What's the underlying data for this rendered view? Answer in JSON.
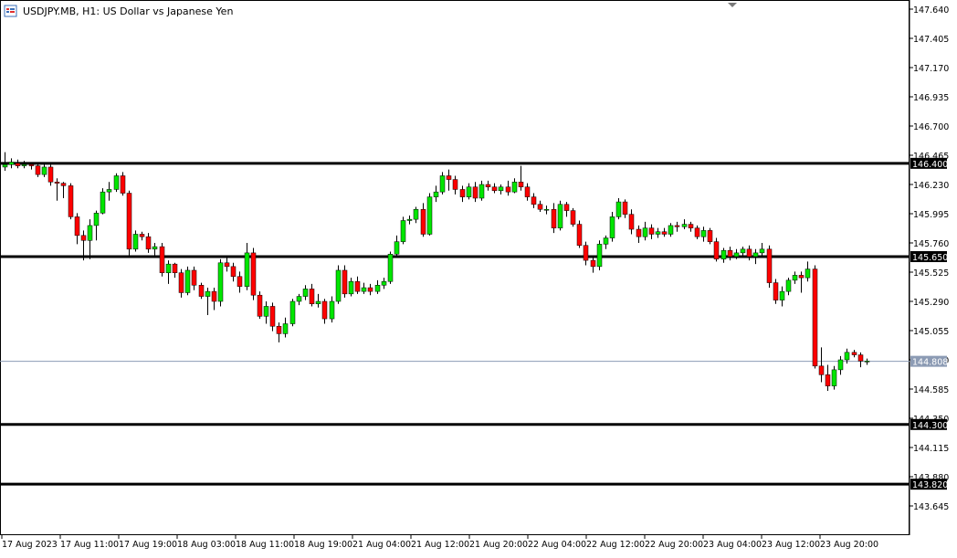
{
  "title": "USDJPY.MB, H1:  US Dollar vs Japanese Yen",
  "icon_name": "chart-window-icon",
  "colors": {
    "bull": "#00e600",
    "bear": "#ff0000",
    "wick": "#000000",
    "level_line": "#000000",
    "bid_line": "#8c9bb4",
    "bid_label_bg": "#8c9bb4",
    "level_label_bg": "#000000"
  },
  "chart_data": {
    "type": "candlestick",
    "symbol": "USDJPY.MB",
    "timeframe": "H1",
    "y_axis_ticks": [
      147.64,
      147.405,
      147.17,
      146.935,
      146.7,
      146.465,
      146.23,
      145.995,
      145.76,
      145.525,
      145.29,
      145.055,
      144.82,
      144.585,
      144.35,
      144.115,
      143.88,
      143.645
    ],
    "y_tick_labels": [
      "147.640",
      "147.405",
      "147.170",
      "146.935",
      "146.700",
      "146.465",
      "146.230",
      "145.995",
      "145.760",
      "145.525",
      "145.290",
      "145.055",
      "144.820",
      "144.585",
      "144.350",
      "144.115",
      "143.880",
      "143.645"
    ],
    "x_labels": [
      "17 Aug 2023",
      "17 Aug 11:00",
      "17 Aug 19:00",
      "18 Aug 03:00",
      "18 Aug 11:00",
      "18 Aug 19:00",
      "21 Aug 04:00",
      "21 Aug 12:00",
      "21 Aug 20:00",
      "22 Aug 04:00",
      "22 Aug 12:00",
      "22 Aug 20:00",
      "23 Aug 04:00",
      "23 Aug 12:00",
      "23 Aug 20:00"
    ],
    "horizontal_levels": [
      {
        "value": 146.4,
        "label": "146.400"
      },
      {
        "value": 145.65,
        "label": "145.650"
      },
      {
        "value": 144.3,
        "label": "144.300"
      },
      {
        "value": 143.82,
        "label": "143.820"
      }
    ],
    "bid": {
      "value": 144.808,
      "label": "144.808"
    },
    "candles": [
      [
        146.37,
        146.39,
        146.49,
        146.34
      ],
      [
        146.39,
        146.41,
        146.44,
        146.36
      ],
      [
        146.4,
        146.38,
        146.43,
        146.36
      ],
      [
        146.38,
        146.39,
        146.42,
        146.36
      ],
      [
        146.39,
        146.38,
        146.41,
        146.35
      ],
      [
        146.38,
        146.31,
        146.4,
        146.29
      ],
      [
        146.31,
        146.37,
        146.4,
        146.29
      ],
      [
        146.37,
        146.25,
        146.39,
        146.22
      ],
      [
        146.25,
        146.24,
        146.28,
        146.1
      ],
      [
        146.24,
        146.22,
        146.25,
        146.12
      ],
      [
        146.22,
        145.97,
        146.24,
        145.95
      ],
      [
        145.97,
        145.82,
        146.0,
        145.75
      ],
      [
        145.82,
        145.78,
        145.86,
        145.62
      ],
      [
        145.78,
        145.9,
        145.95,
        145.63
      ],
      [
        145.9,
        146.0,
        146.02,
        145.78
      ],
      [
        146.0,
        146.17,
        146.2,
        145.99
      ],
      [
        146.17,
        146.19,
        146.25,
        146.1
      ],
      [
        146.19,
        146.3,
        146.32,
        146.17
      ],
      [
        146.3,
        146.16,
        146.33,
        146.14
      ],
      [
        146.16,
        145.71,
        146.18,
        145.66
      ],
      [
        145.71,
        145.83,
        145.86,
        145.69
      ],
      [
        145.83,
        145.81,
        145.85,
        145.78
      ],
      [
        145.81,
        145.71,
        145.84,
        145.68
      ],
      [
        145.71,
        145.73,
        145.76,
        145.65
      ],
      [
        145.73,
        145.52,
        145.76,
        145.49
      ],
      [
        145.52,
        145.59,
        145.62,
        145.43
      ],
      [
        145.59,
        145.52,
        145.6,
        145.48
      ],
      [
        145.52,
        145.36,
        145.55,
        145.32
      ],
      [
        145.36,
        145.54,
        145.57,
        145.34
      ],
      [
        145.54,
        145.42,
        145.57,
        145.38
      ],
      [
        145.42,
        145.33,
        145.44,
        145.31
      ],
      [
        145.33,
        145.37,
        145.4,
        145.18
      ],
      [
        145.37,
        145.29,
        145.4,
        145.22
      ],
      [
        145.29,
        145.6,
        145.63,
        145.25
      ],
      [
        145.6,
        145.57,
        145.65,
        145.53
      ],
      [
        145.57,
        145.49,
        145.6,
        145.45
      ],
      [
        145.49,
        145.41,
        145.53,
        145.36
      ],
      [
        145.41,
        145.68,
        145.76,
        145.38
      ],
      [
        145.68,
        145.34,
        145.72,
        145.3
      ],
      [
        145.34,
        145.17,
        145.37,
        145.15
      ],
      [
        145.17,
        145.25,
        145.29,
        145.11
      ],
      [
        145.25,
        145.09,
        145.28,
        145.05
      ],
      [
        145.09,
        145.03,
        145.12,
        144.96
      ],
      [
        145.03,
        145.11,
        145.16,
        145.0
      ],
      [
        145.11,
        145.29,
        145.31,
        145.09
      ],
      [
        145.29,
        145.33,
        145.35,
        145.26
      ],
      [
        145.33,
        145.39,
        145.42,
        145.3
      ],
      [
        145.39,
        145.27,
        145.43,
        145.25
      ],
      [
        145.27,
        145.29,
        145.35,
        145.24
      ],
      [
        145.29,
        145.15,
        145.31,
        145.11
      ],
      [
        145.15,
        145.29,
        145.33,
        145.12
      ],
      [
        145.29,
        145.54,
        145.58,
        145.27
      ],
      [
        145.54,
        145.35,
        145.58,
        145.32
      ],
      [
        145.35,
        145.45,
        145.48,
        145.33
      ],
      [
        145.45,
        145.37,
        145.49,
        145.35
      ],
      [
        145.37,
        145.4,
        145.44,
        145.35
      ],
      [
        145.4,
        145.37,
        145.43,
        145.34
      ],
      [
        145.37,
        145.42,
        145.46,
        145.35
      ],
      [
        145.42,
        145.45,
        145.48,
        145.39
      ],
      [
        145.45,
        145.67,
        145.69,
        145.43
      ],
      [
        145.67,
        145.77,
        145.82,
        145.64
      ],
      [
        145.77,
        145.94,
        145.97,
        145.75
      ],
      [
        145.94,
        145.95,
        145.98,
        145.91
      ],
      [
        145.95,
        146.03,
        146.05,
        145.92
      ],
      [
        146.03,
        145.83,
        146.08,
        145.81
      ],
      [
        145.83,
        146.13,
        146.16,
        145.82
      ],
      [
        146.13,
        146.17,
        146.22,
        146.09
      ],
      [
        146.17,
        146.3,
        146.33,
        146.15
      ],
      [
        146.3,
        146.27,
        146.35,
        146.18
      ],
      [
        146.27,
        146.19,
        146.3,
        146.15
      ],
      [
        146.19,
        146.13,
        146.22,
        146.09
      ],
      [
        146.13,
        146.21,
        146.24,
        146.11
      ],
      [
        146.21,
        146.12,
        146.25,
        146.09
      ],
      [
        146.12,
        146.23,
        146.26,
        146.1
      ],
      [
        146.23,
        146.21,
        146.26,
        146.18
      ],
      [
        146.21,
        146.18,
        146.24,
        146.16
      ],
      [
        146.18,
        146.21,
        146.23,
        146.15
      ],
      [
        146.21,
        146.17,
        146.26,
        146.14
      ],
      [
        146.17,
        146.25,
        146.28,
        146.16
      ],
      [
        146.25,
        146.21,
        146.38,
        146.18
      ],
      [
        146.21,
        146.13,
        146.24,
        146.1
      ],
      [
        146.13,
        146.07,
        146.16,
        146.04
      ],
      [
        146.07,
        146.03,
        146.1,
        146.01
      ],
      [
        146.03,
        146.03,
        146.06,
        145.99
      ],
      [
        146.03,
        145.88,
        146.08,
        145.84
      ],
      [
        145.88,
        146.07,
        146.1,
        145.86
      ],
      [
        146.07,
        146.02,
        146.09,
        145.97
      ],
      [
        146.02,
        145.91,
        146.04,
        145.89
      ],
      [
        145.91,
        145.74,
        145.94,
        145.72
      ],
      [
        145.74,
        145.62,
        145.77,
        145.58
      ],
      [
        145.62,
        145.57,
        145.65,
        145.52
      ],
      [
        145.57,
        145.75,
        145.78,
        145.54
      ],
      [
        145.75,
        145.8,
        145.82,
        145.71
      ],
      [
        145.8,
        145.97,
        146.01,
        145.77
      ],
      [
        145.97,
        146.09,
        146.12,
        145.95
      ],
      [
        146.09,
        145.99,
        146.11,
        145.96
      ],
      [
        145.99,
        145.87,
        146.03,
        145.83
      ],
      [
        145.87,
        145.81,
        145.9,
        145.76
      ],
      [
        145.81,
        145.88,
        145.93,
        145.78
      ],
      [
        145.88,
        145.83,
        145.91,
        145.79
      ],
      [
        145.83,
        145.85,
        145.88,
        145.8
      ],
      [
        145.85,
        145.83,
        145.88,
        145.81
      ],
      [
        145.83,
        145.9,
        145.92,
        145.81
      ],
      [
        145.9,
        145.89,
        145.93,
        145.85
      ],
      [
        145.89,
        145.91,
        145.95,
        145.87
      ],
      [
        145.91,
        145.88,
        145.93,
        145.85
      ],
      [
        145.88,
        145.81,
        145.9,
        145.79
      ],
      [
        145.81,
        145.86,
        145.89,
        145.77
      ],
      [
        145.86,
        145.77,
        145.88,
        145.75
      ],
      [
        145.77,
        145.63,
        145.8,
        145.61
      ],
      [
        145.63,
        145.7,
        145.72,
        145.6
      ],
      [
        145.7,
        145.65,
        145.73,
        145.62
      ],
      [
        145.65,
        145.68,
        145.71,
        145.63
      ],
      [
        145.68,
        145.71,
        145.73,
        145.65
      ],
      [
        145.71,
        145.65,
        145.74,
        145.62
      ],
      [
        145.65,
        145.68,
        145.71,
        145.59
      ],
      [
        145.68,
        145.71,
        145.76,
        145.64
      ],
      [
        145.71,
        145.44,
        145.74,
        145.4
      ],
      [
        145.44,
        145.3,
        145.47,
        145.27
      ],
      [
        145.3,
        145.37,
        145.41,
        145.25
      ],
      [
        145.37,
        145.46,
        145.48,
        145.34
      ],
      [
        145.46,
        145.5,
        145.53,
        145.43
      ],
      [
        145.5,
        145.48,
        145.53,
        145.36
      ],
      [
        145.48,
        145.55,
        145.61,
        145.45
      ],
      [
        145.55,
        144.77,
        145.58,
        144.75
      ],
      [
        144.77,
        144.7,
        144.92,
        144.64
      ],
      [
        144.7,
        144.61,
        144.78,
        144.57
      ],
      [
        144.61,
        144.74,
        144.77,
        144.58
      ],
      [
        144.74,
        144.82,
        144.85,
        144.7
      ],
      [
        144.82,
        144.88,
        144.91,
        144.79
      ],
      [
        144.88,
        144.86,
        144.9,
        144.84
      ],
      [
        144.86,
        144.81,
        144.88,
        144.76
      ],
      [
        144.81,
        144.81,
        144.83,
        144.78
      ]
    ]
  }
}
